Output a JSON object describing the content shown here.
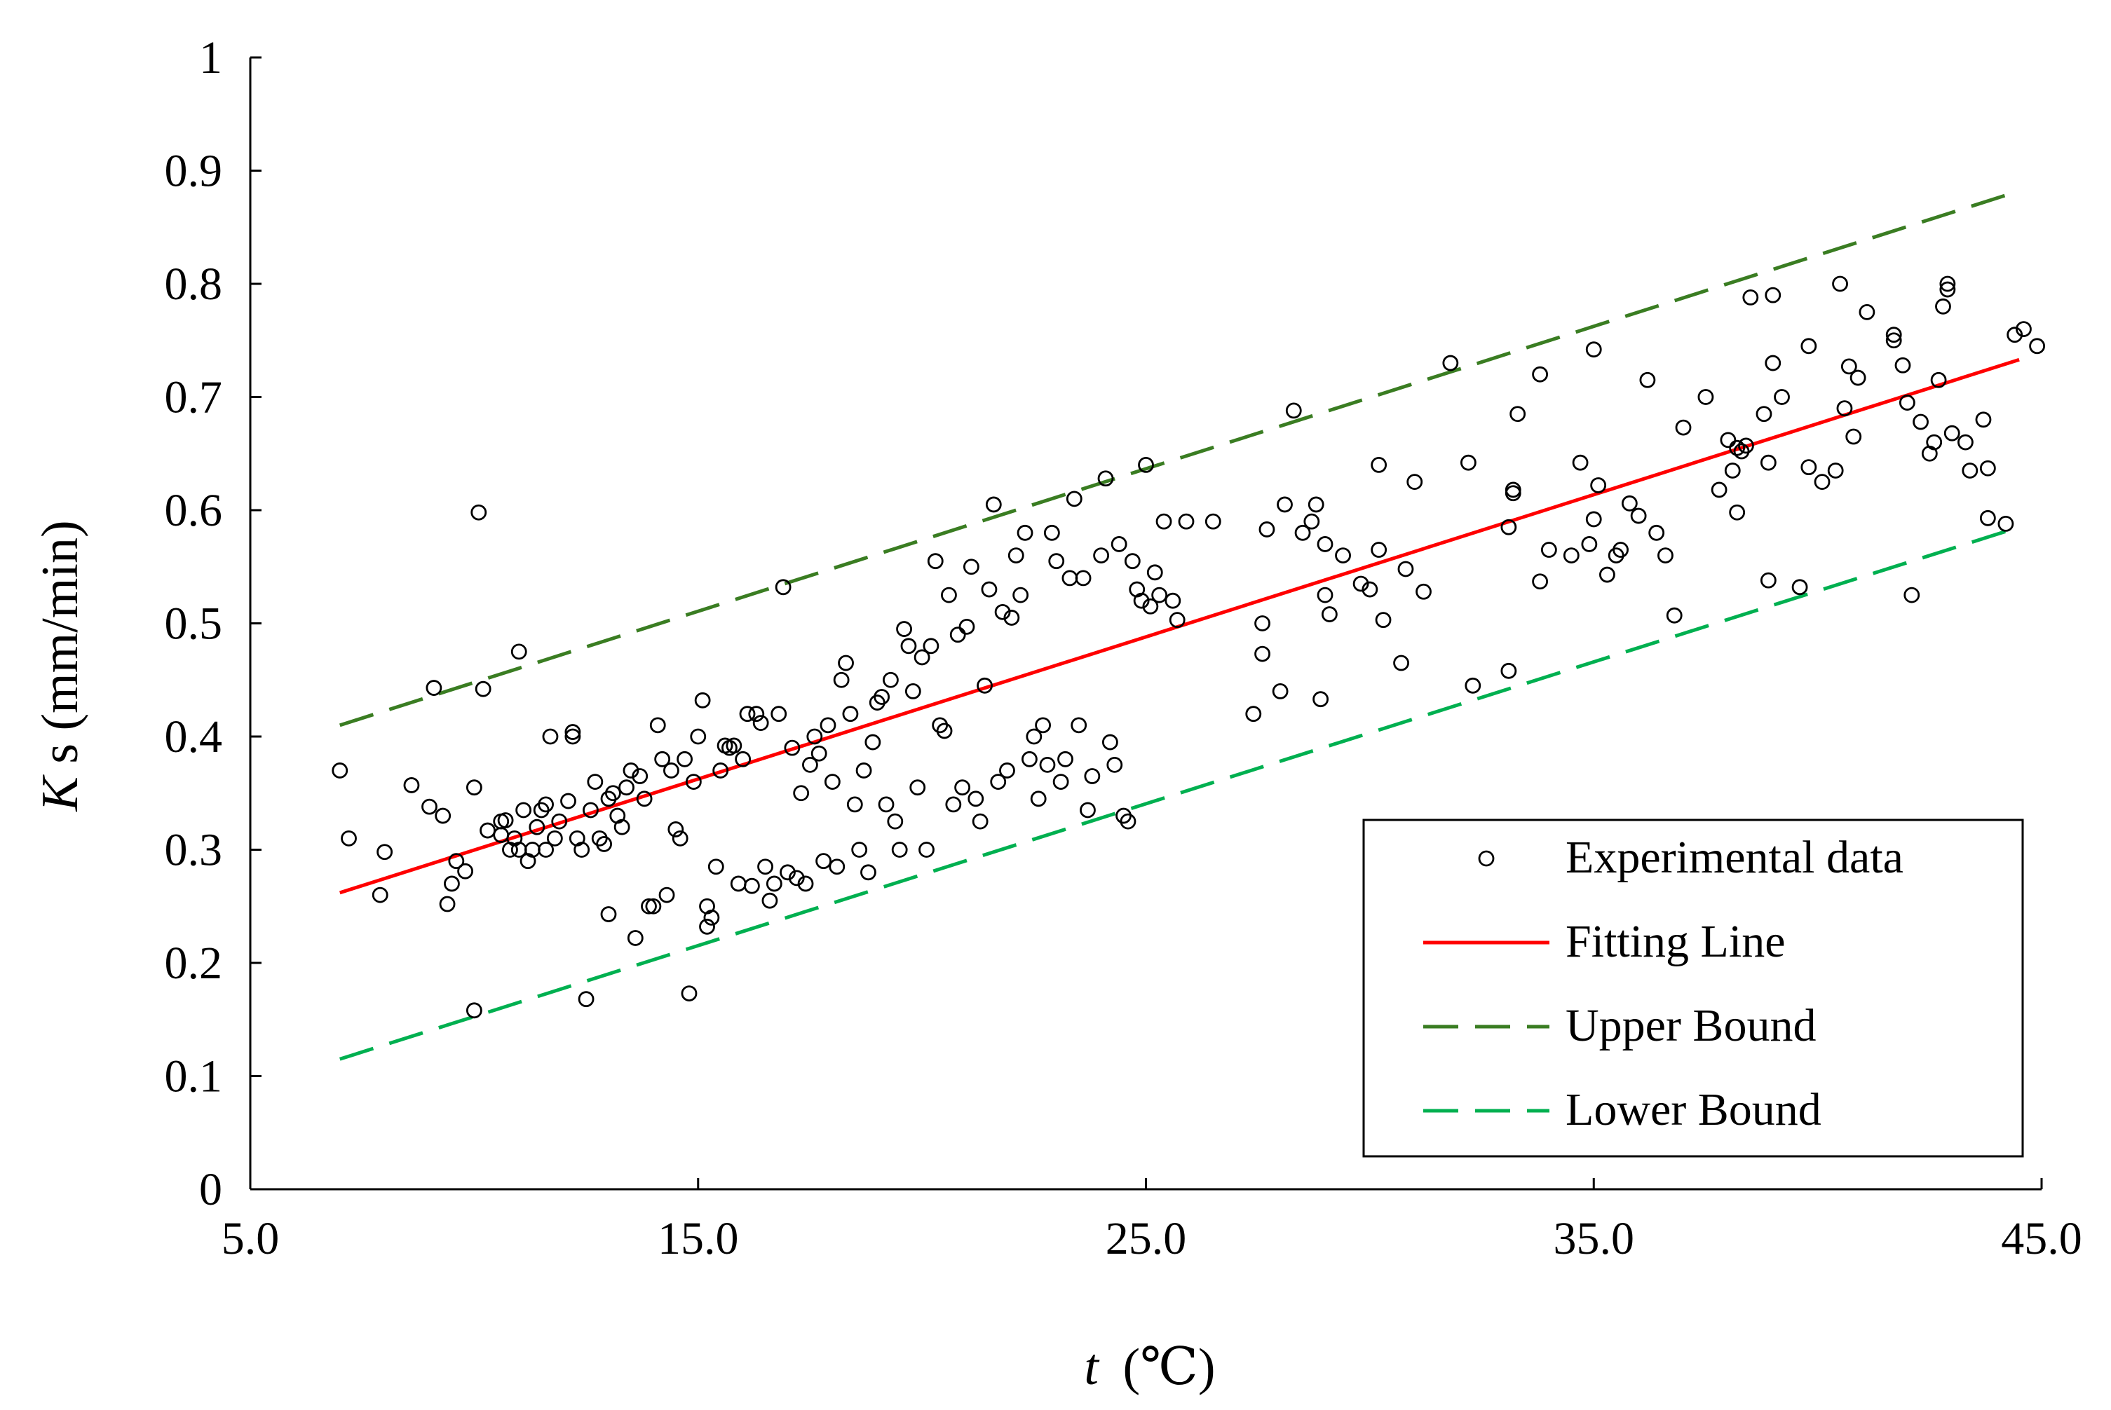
{
  "chart_data": {
    "type": "scatter",
    "title": "",
    "xlabel": {
      "italic": "t",
      "unit": "(℃)"
    },
    "ylabel": {
      "italic": "K",
      "rest": "s (mm/min)"
    },
    "xlim": [
      5,
      45
    ],
    "ylim": [
      0,
      1
    ],
    "x_ticks": [
      5,
      15,
      25,
      35,
      45
    ],
    "x_tick_labels": [
      "5.0",
      "15.0",
      "25.0",
      "35.0",
      "45.0"
    ],
    "y_ticks": [
      0,
      0.1,
      0.2,
      0.3,
      0.4,
      0.5,
      0.6,
      0.7,
      0.8,
      0.9,
      1
    ],
    "y_tick_labels": [
      "0",
      "0.1",
      "0.2",
      "0.3",
      "0.4",
      "0.5",
      "0.6",
      "0.7",
      "0.8",
      "0.9",
      "1"
    ],
    "grid": false,
    "legend_position": "bottom-right",
    "legend": [
      {
        "key": "data",
        "label": "Experimental data",
        "marker": "circle"
      },
      {
        "key": "fit",
        "label": "Fitting Line",
        "style": "solid"
      },
      {
        "key": "upper",
        "label": "Upper Bound",
        "style": "dashed"
      },
      {
        "key": "lower",
        "label": "Lower Bound",
        "style": "dashed"
      }
    ],
    "colors": {
      "data": "#000000",
      "fit": "#ff0000",
      "upper": "#3a7d22",
      "lower": "#00b050",
      "axis": "#000000"
    },
    "lines": {
      "fit": {
        "x": [
          7.0,
          44.5
        ],
        "y": [
          0.262,
          0.733
        ]
      },
      "upper": {
        "x": [
          7.0,
          44.5
        ],
        "y": [
          0.41,
          0.882
        ]
      },
      "lower": {
        "x": [
          7.0,
          44.5
        ],
        "y": [
          0.115,
          0.585
        ]
      }
    },
    "series": [
      {
        "name": "Experimental data",
        "points": [
          [
            7.0,
            0.37
          ],
          [
            7.2,
            0.31
          ],
          [
            7.9,
            0.26
          ],
          [
            8.0,
            0.298
          ],
          [
            8.6,
            0.357
          ],
          [
            9.0,
            0.338
          ],
          [
            9.1,
            0.443
          ],
          [
            9.3,
            0.33
          ],
          [
            9.4,
            0.252
          ],
          [
            9.5,
            0.27
          ],
          [
            9.6,
            0.29
          ],
          [
            9.8,
            0.281
          ],
          [
            10.0,
            0.158
          ],
          [
            10.0,
            0.355
          ],
          [
            10.1,
            0.598
          ],
          [
            10.2,
            0.442
          ],
          [
            10.3,
            0.317
          ],
          [
            10.6,
            0.313
          ],
          [
            10.6,
            0.325
          ],
          [
            10.7,
            0.326
          ],
          [
            10.8,
            0.3
          ],
          [
            10.9,
            0.31
          ],
          [
            11.0,
            0.3
          ],
          [
            11.0,
            0.475
          ],
          [
            11.1,
            0.335
          ],
          [
            11.2,
            0.29
          ],
          [
            11.3,
            0.3
          ],
          [
            11.4,
            0.32
          ],
          [
            11.5,
            0.335
          ],
          [
            11.6,
            0.3
          ],
          [
            11.6,
            0.34
          ],
          [
            11.7,
            0.4
          ],
          [
            11.8,
            0.31
          ],
          [
            11.9,
            0.325
          ],
          [
            12.1,
            0.343
          ],
          [
            12.2,
            0.4
          ],
          [
            12.2,
            0.404
          ],
          [
            12.3,
            0.31
          ],
          [
            12.4,
            0.3
          ],
          [
            12.5,
            0.168
          ],
          [
            12.6,
            0.335
          ],
          [
            12.7,
            0.36
          ],
          [
            12.8,
            0.31
          ],
          [
            12.9,
            0.305
          ],
          [
            13.0,
            0.345
          ],
          [
            13.0,
            0.243
          ],
          [
            13.1,
            0.35
          ],
          [
            13.2,
            0.33
          ],
          [
            13.3,
            0.32
          ],
          [
            13.4,
            0.355
          ],
          [
            13.5,
            0.37
          ],
          [
            13.6,
            0.222
          ],
          [
            13.7,
            0.365
          ],
          [
            13.8,
            0.345
          ],
          [
            13.9,
            0.25
          ],
          [
            14.0,
            0.25
          ],
          [
            14.1,
            0.41
          ],
          [
            14.2,
            0.38
          ],
          [
            14.3,
            0.26
          ],
          [
            14.4,
            0.37
          ],
          [
            14.5,
            0.318
          ],
          [
            14.6,
            0.31
          ],
          [
            14.7,
            0.38
          ],
          [
            14.8,
            0.173
          ],
          [
            14.9,
            0.36
          ],
          [
            15.0,
            0.4
          ],
          [
            15.1,
            0.432
          ],
          [
            15.2,
            0.25
          ],
          [
            15.2,
            0.232
          ],
          [
            15.3,
            0.24
          ],
          [
            15.4,
            0.285
          ],
          [
            15.5,
            0.37
          ],
          [
            15.6,
            0.392
          ],
          [
            15.7,
            0.39
          ],
          [
            15.8,
            0.392
          ],
          [
            15.9,
            0.27
          ],
          [
            16.0,
            0.38
          ],
          [
            16.1,
            0.42
          ],
          [
            16.2,
            0.268
          ],
          [
            16.3,
            0.42
          ],
          [
            16.4,
            0.412
          ],
          [
            16.5,
            0.285
          ],
          [
            16.6,
            0.255
          ],
          [
            16.7,
            0.27
          ],
          [
            16.8,
            0.42
          ],
          [
            16.9,
            0.532
          ],
          [
            17.0,
            0.28
          ],
          [
            17.1,
            0.39
          ],
          [
            17.2,
            0.275
          ],
          [
            17.3,
            0.35
          ],
          [
            17.4,
            0.27
          ],
          [
            17.5,
            0.375
          ],
          [
            17.6,
            0.4
          ],
          [
            17.7,
            0.385
          ],
          [
            17.8,
            0.29
          ],
          [
            17.9,
            0.41
          ],
          [
            18.0,
            0.36
          ],
          [
            18.1,
            0.285
          ],
          [
            18.2,
            0.45
          ],
          [
            18.3,
            0.465
          ],
          [
            18.4,
            0.42
          ],
          [
            18.5,
            0.34
          ],
          [
            18.6,
            0.3
          ],
          [
            18.7,
            0.37
          ],
          [
            18.8,
            0.28
          ],
          [
            18.9,
            0.395
          ],
          [
            19.0,
            0.43
          ],
          [
            19.1,
            0.435
          ],
          [
            19.2,
            0.34
          ],
          [
            19.3,
            0.45
          ],
          [
            19.4,
            0.325
          ],
          [
            19.5,
            0.3
          ],
          [
            19.6,
            0.495
          ],
          [
            19.7,
            0.48
          ],
          [
            19.8,
            0.44
          ],
          [
            19.9,
            0.355
          ],
          [
            20.0,
            0.47
          ],
          [
            20.1,
            0.3
          ],
          [
            20.2,
            0.48
          ],
          [
            20.3,
            0.555
          ],
          [
            20.4,
            0.41
          ],
          [
            20.5,
            0.405
          ],
          [
            20.6,
            0.525
          ],
          [
            20.7,
            0.34
          ],
          [
            20.8,
            0.49
          ],
          [
            20.9,
            0.355
          ],
          [
            21.0,
            0.497
          ],
          [
            21.1,
            0.55
          ],
          [
            21.2,
            0.345
          ],
          [
            21.3,
            0.325
          ],
          [
            21.4,
            0.445
          ],
          [
            21.5,
            0.53
          ],
          [
            21.6,
            0.605
          ],
          [
            21.7,
            0.36
          ],
          [
            21.8,
            0.51
          ],
          [
            21.9,
            0.37
          ],
          [
            22.0,
            0.505
          ],
          [
            22.1,
            0.56
          ],
          [
            22.2,
            0.525
          ],
          [
            22.3,
            0.58
          ],
          [
            22.4,
            0.38
          ],
          [
            22.5,
            0.4
          ],
          [
            22.6,
            0.345
          ],
          [
            22.7,
            0.41
          ],
          [
            22.8,
            0.375
          ],
          [
            22.9,
            0.58
          ],
          [
            23.0,
            0.555
          ],
          [
            23.1,
            0.36
          ],
          [
            23.2,
            0.38
          ],
          [
            23.3,
            0.54
          ],
          [
            23.4,
            0.61
          ],
          [
            23.5,
            0.41
          ],
          [
            23.6,
            0.54
          ],
          [
            23.7,
            0.335
          ],
          [
            23.8,
            0.365
          ],
          [
            24.0,
            0.56
          ],
          [
            24.1,
            0.628
          ],
          [
            24.2,
            0.395
          ],
          [
            24.3,
            0.375
          ],
          [
            24.4,
            0.57
          ],
          [
            24.5,
            0.33
          ],
          [
            24.6,
            0.325
          ],
          [
            24.7,
            0.555
          ],
          [
            24.8,
            0.53
          ],
          [
            24.9,
            0.52
          ],
          [
            25.0,
            0.64
          ],
          [
            25.1,
            0.515
          ],
          [
            25.2,
            0.545
          ],
          [
            25.3,
            0.525
          ],
          [
            25.4,
            0.59
          ],
          [
            25.6,
            0.52
          ],
          [
            25.7,
            0.503
          ],
          [
            25.9,
            0.59
          ],
          [
            26.5,
            0.59
          ],
          [
            27.4,
            0.42
          ],
          [
            27.6,
            0.5
          ],
          [
            27.6,
            0.473
          ],
          [
            27.7,
            0.583
          ],
          [
            28.0,
            0.44
          ],
          [
            28.1,
            0.605
          ],
          [
            28.3,
            0.688
          ],
          [
            28.5,
            0.58
          ],
          [
            28.7,
            0.59
          ],
          [
            28.8,
            0.605
          ],
          [
            28.9,
            0.433
          ],
          [
            29.0,
            0.57
          ],
          [
            29.0,
            0.525
          ],
          [
            29.1,
            0.508
          ],
          [
            29.4,
            0.56
          ],
          [
            29.8,
            0.535
          ],
          [
            30.0,
            0.53
          ],
          [
            30.2,
            0.64
          ],
          [
            30.2,
            0.565
          ],
          [
            30.3,
            0.503
          ],
          [
            30.7,
            0.465
          ],
          [
            30.8,
            0.548
          ],
          [
            31.0,
            0.625
          ],
          [
            31.2,
            0.528
          ],
          [
            31.8,
            0.73
          ],
          [
            32.2,
            0.642
          ],
          [
            32.3,
            0.445
          ],
          [
            33.1,
            0.585
          ],
          [
            33.2,
            0.615
          ],
          [
            33.2,
            0.618
          ],
          [
            33.3,
            0.685
          ],
          [
            33.1,
            0.458
          ],
          [
            33.8,
            0.537
          ],
          [
            33.8,
            0.72
          ],
          [
            34.0,
            0.565
          ],
          [
            34.5,
            0.56
          ],
          [
            34.7,
            0.642
          ],
          [
            34.9,
            0.57
          ],
          [
            35.0,
            0.592
          ],
          [
            35.0,
            0.742
          ],
          [
            35.1,
            0.622
          ],
          [
            35.3,
            0.543
          ],
          [
            35.5,
            0.56
          ],
          [
            35.6,
            0.565
          ],
          [
            35.8,
            0.606
          ],
          [
            36.0,
            0.595
          ],
          [
            36.2,
            0.715
          ],
          [
            36.4,
            0.58
          ],
          [
            36.6,
            0.56
          ],
          [
            36.8,
            0.507
          ],
          [
            37.0,
            0.673
          ],
          [
            37.5,
            0.7
          ],
          [
            37.8,
            0.618
          ],
          [
            38.0,
            0.662
          ],
          [
            38.1,
            0.635
          ],
          [
            38.2,
            0.655
          ],
          [
            38.2,
            0.598
          ],
          [
            38.3,
            0.652
          ],
          [
            38.4,
            0.657
          ],
          [
            38.5,
            0.788
          ],
          [
            38.8,
            0.685
          ],
          [
            38.9,
            0.642
          ],
          [
            39.0,
            0.73
          ],
          [
            39.0,
            0.79
          ],
          [
            38.9,
            0.538
          ],
          [
            39.2,
            0.7
          ],
          [
            39.6,
            0.532
          ],
          [
            39.8,
            0.638
          ],
          [
            39.8,
            0.745
          ],
          [
            40.1,
            0.625
          ],
          [
            40.4,
            0.635
          ],
          [
            40.5,
            0.8
          ],
          [
            40.6,
            0.69
          ],
          [
            40.7,
            0.727
          ],
          [
            40.8,
            0.665
          ],
          [
            40.9,
            0.717
          ],
          [
            41.1,
            0.775
          ],
          [
            41.7,
            0.75
          ],
          [
            41.7,
            0.755
          ],
          [
            41.9,
            0.728
          ],
          [
            42.0,
            0.695
          ],
          [
            42.1,
            0.525
          ],
          [
            42.3,
            0.678
          ],
          [
            42.5,
            0.65
          ],
          [
            42.6,
            0.66
          ],
          [
            42.7,
            0.715
          ],
          [
            42.8,
            0.78
          ],
          [
            42.9,
            0.795
          ],
          [
            42.9,
            0.8
          ],
          [
            43.0,
            0.668
          ],
          [
            43.3,
            0.66
          ],
          [
            43.4,
            0.635
          ],
          [
            43.7,
            0.68
          ],
          [
            43.8,
            0.593
          ],
          [
            43.8,
            0.637
          ],
          [
            44.2,
            0.588
          ],
          [
            44.4,
            0.755
          ],
          [
            44.6,
            0.76
          ],
          [
            44.9,
            0.745
          ]
        ]
      }
    ]
  }
}
